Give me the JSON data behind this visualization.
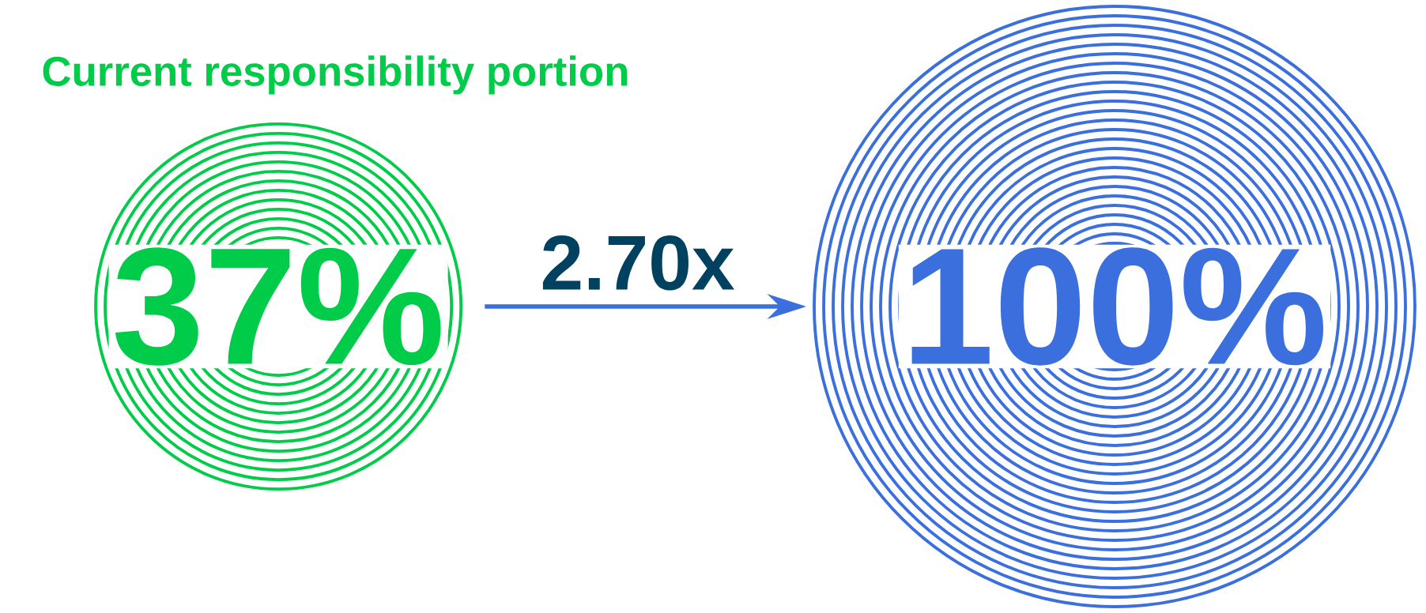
{
  "chart_data": {
    "type": "other",
    "values": [
      37,
      100
    ],
    "value_labels": [
      "37%",
      "100%"
    ],
    "colors": [
      "#00cc4a",
      "#3a6fdd"
    ],
    "annotations": [
      "Current responsibility portion",
      "2.70x"
    ]
  }
}
